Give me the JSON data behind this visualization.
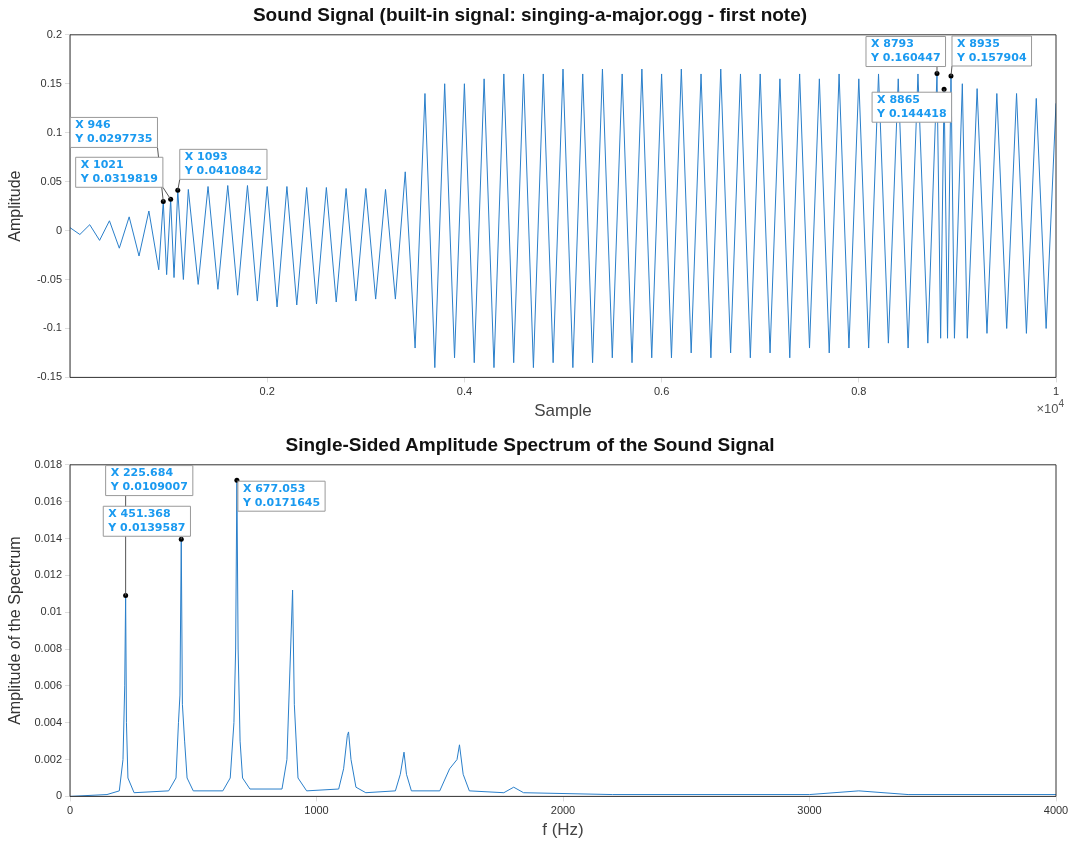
{
  "chart_data": [
    {
      "type": "line",
      "title": "Sound Signal (built-in signal: singing-a-major.ogg - first note)",
      "xlabel": "Sample",
      "ylabel": "Amplitude",
      "color": "#2a7fca",
      "marker": "none",
      "line_style": "solid",
      "legend": false,
      "grid": false,
      "xlim": [
        0,
        1
      ],
      "xticks": [
        0.2,
        0.4,
        0.6,
        0.8,
        1
      ],
      "ylim": [
        -0.15,
        0.2
      ],
      "yticks": [
        -0.15,
        -0.1,
        -0.05,
        0,
        0.05,
        0.1,
        0.15,
        0.2
      ],
      "x": [
        0,
        0.01,
        0.02,
        0.03,
        0.04,
        0.05,
        0.06,
        0.07,
        0.08,
        0.09,
        0.0946,
        0.098,
        0.1021,
        0.1055,
        0.1093,
        0.115,
        0.12,
        0.13,
        0.14,
        0.15,
        0.16,
        0.17,
        0.18,
        0.19,
        0.2,
        0.21,
        0.22,
        0.23,
        0.24,
        0.25,
        0.26,
        0.27,
        0.28,
        0.29,
        0.3,
        0.31,
        0.32,
        0.33,
        0.34,
        0.35,
        0.36,
        0.37,
        0.38,
        0.39,
        0.4,
        0.41,
        0.42,
        0.43,
        0.44,
        0.45,
        0.46,
        0.47,
        0.48,
        0.49,
        0.5,
        0.51,
        0.52,
        0.53,
        0.54,
        0.55,
        0.56,
        0.57,
        0.58,
        0.59,
        0.6,
        0.61,
        0.62,
        0.63,
        0.64,
        0.65,
        0.66,
        0.67,
        0.68,
        0.69,
        0.7,
        0.71,
        0.72,
        0.73,
        0.74,
        0.75,
        0.76,
        0.77,
        0.78,
        0.79,
        0.8,
        0.81,
        0.82,
        0.83,
        0.84,
        0.85,
        0.86,
        0.87,
        0.8793,
        0.883,
        0.8865,
        0.89,
        0.8935,
        0.897,
        0.905,
        0.91,
        0.92,
        0.93,
        0.94,
        0.95,
        0.96,
        0.97,
        0.98,
        0.99,
        1
      ],
      "values": [
        0.003,
        -0.004,
        0.006,
        -0.01,
        0.01,
        -0.018,
        0.014,
        -0.026,
        0.02,
        -0.04,
        0.0297735,
        -0.045,
        0.0319819,
        -0.048,
        0.0410842,
        -0.05,
        0.042,
        -0.055,
        0.045,
        -0.06,
        0.046,
        -0.066,
        0.046,
        -0.072,
        0.045,
        -0.078,
        0.045,
        -0.076,
        0.044,
        -0.075,
        0.044,
        -0.073,
        0.043,
        -0.072,
        0.043,
        -0.07,
        0.042,
        -0.07,
        0.06,
        -0.12,
        0.14,
        -0.14,
        0.15,
        -0.13,
        0.15,
        -0.135,
        0.155,
        -0.14,
        0.16,
        -0.135,
        0.16,
        -0.14,
        0.16,
        -0.135,
        0.165,
        -0.14,
        0.16,
        -0.135,
        0.165,
        -0.13,
        0.16,
        -0.135,
        0.165,
        -0.13,
        0.16,
        -0.13,
        0.165,
        -0.125,
        0.16,
        -0.13,
        0.165,
        -0.125,
        0.16,
        -0.13,
        0.16,
        -0.125,
        0.155,
        -0.13,
        0.16,
        -0.12,
        0.155,
        -0.125,
        0.16,
        -0.12,
        0.155,
        -0.12,
        0.16,
        -0.115,
        0.155,
        -0.12,
        0.16,
        -0.115,
        0.160447,
        -0.11,
        0.144418,
        -0.11,
        0.157904,
        -0.11,
        0.15,
        -0.11,
        0.145,
        -0.105,
        0.14,
        -0.1,
        0.14,
        -0.105,
        0.135,
        -0.1,
        0.13
      ],
      "annotations": [
        {
          "text": "X 946 Y 0.0297735",
          "x": 0.0946,
          "y": 0.0297735
        },
        {
          "text": "X 1021 Y 0.0319819",
          "x": 0.1021,
          "y": 0.0319819
        },
        {
          "text": "X 1093 Y 0.0410842",
          "x": 0.1093,
          "y": 0.0410842
        },
        {
          "text": "X 8793 Y 0.160447",
          "x": 0.8793,
          "y": 0.160447
        },
        {
          "text": "X 8865 Y 0.144418",
          "x": 0.8865,
          "y": 0.144418
        },
        {
          "text": "X 8935 Y 0.157904",
          "x": 0.8935,
          "y": 0.157904
        },
        "×10$^{4}$"
      ]
    },
    {
      "type": "line",
      "title": "Single-Sided Amplitude Spectrum of the Sound Signal",
      "xlabel": "f (Hz)",
      "ylabel": "Amplitude of the Spectrum",
      "color": "#2a7fca",
      "marker": "none",
      "line_style": "solid",
      "legend": false,
      "grid": false,
      "xlim": [
        0,
        4000
      ],
      "xticks": [
        0,
        1000,
        2000,
        3000,
        4000
      ],
      "ylim": [
        0,
        0.018
      ],
      "yticks": [
        0,
        0.002,
        0.004,
        0.006,
        0.008,
        0.01,
        0.012,
        0.014,
        0.016,
        0.018
      ],
      "x": [
        0,
        150,
        200,
        215,
        222,
        225.684,
        229,
        235,
        260,
        400,
        430,
        440,
        446,
        451.368,
        456,
        465,
        475,
        500,
        620,
        650,
        665,
        672,
        677.053,
        682,
        690,
        700,
        730,
        860,
        880,
        895,
        903,
        910,
        925,
        960,
        1090,
        1110,
        1125,
        1130,
        1140,
        1160,
        1200,
        1320,
        1340,
        1355,
        1365,
        1385,
        1500,
        1540,
        1570,
        1580,
        1595,
        1620,
        1760,
        1800,
        1840,
        2200,
        3000,
        3200,
        3400,
        4000
      ],
      "values": [
        0,
        0.0001,
        0.0003,
        0.002,
        0.006,
        0.0109007,
        0.004,
        0.001,
        0.0002,
        0.0003,
        0.001,
        0.004,
        0.0055,
        0.0139587,
        0.005,
        0.003,
        0.001,
        0.0003,
        0.0003,
        0.001,
        0.004,
        0.008,
        0.0171645,
        0.008,
        0.003,
        0.001,
        0.0004,
        0.0004,
        0.002,
        0.008,
        0.0112,
        0.005,
        0.001,
        0.0003,
        0.0004,
        0.0015,
        0.0033,
        0.0035,
        0.002,
        0.0005,
        0.0002,
        0.0003,
        0.0012,
        0.0024,
        0.0012,
        0.0003,
        0.0003,
        0.0015,
        0.002,
        0.0028,
        0.0012,
        0.0003,
        0.0002,
        0.0005,
        0.0002,
        0.0001,
        0.0001,
        0.0003,
        0.0001,
        0.0001
      ],
      "annotations": [
        {
          "text": "X 451.368 Y 0.0139587",
          "x": 451.368,
          "y": 0.0139587
        },
        {
          "text": "X 225.684 Y 0.0109007",
          "x": 225.684,
          "y": 0.0109007
        },
        {
          "text": "X 677.053 Y 0.0171645",
          "x": 677.053,
          "y": 0.0171645
        }
      ]
    }
  ]
}
